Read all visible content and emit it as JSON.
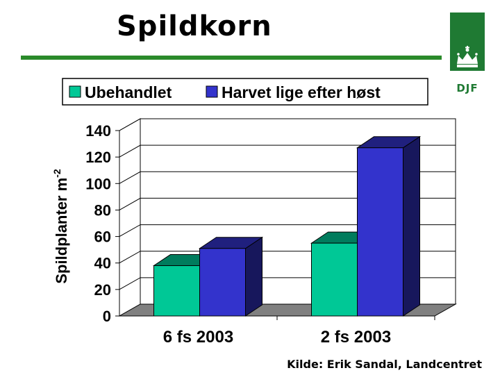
{
  "slide": {
    "title": "Spildkorn",
    "logo_text": "DJF",
    "source": "Kilde: Erik Sandal, Landcentret"
  },
  "colors": {
    "title_rule": "#2a8a2a",
    "logo": "#1f7a33",
    "series_1": "#00c896",
    "series_2": "#3333cc"
  },
  "chart_data": {
    "type": "bar",
    "style": "3d-clustered-column",
    "categories": [
      "6 fs 2003",
      "2 fs 2003"
    ],
    "series": [
      {
        "name": "Ubehandlet",
        "values": [
          38,
          55
        ],
        "color": "#00c896"
      },
      {
        "name": "Harvet lige efter høst",
        "values": [
          51,
          127
        ],
        "color": "#3333cc"
      }
    ],
    "ylabel": "Spildplanter m",
    "ylabel_superscript": "-2",
    "ylim": [
      0,
      140
    ],
    "yticks": [
      0,
      20,
      40,
      60,
      80,
      100,
      120,
      140
    ],
    "grid": true,
    "legend_position": "top"
  }
}
